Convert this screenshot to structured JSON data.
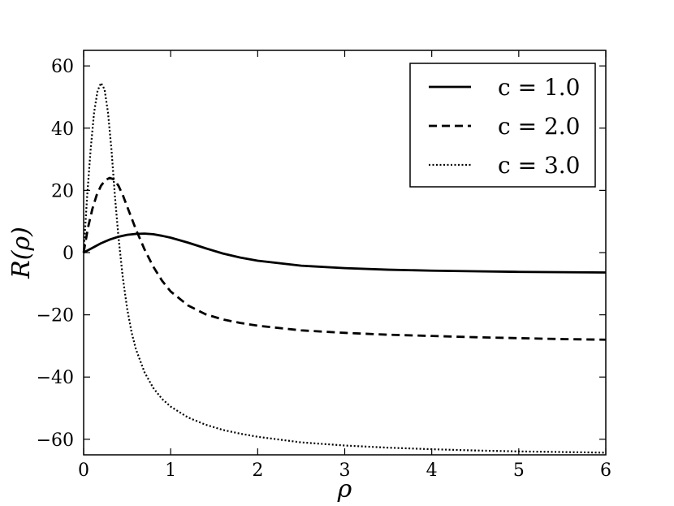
{
  "chart_data": {
    "type": "line",
    "title": "",
    "xlabel": "ρ",
    "ylabel": "R(ρ)",
    "xlim": [
      0,
      6
    ],
    "ylim": [
      -65,
      65
    ],
    "xticks": [
      0,
      1,
      2,
      3,
      4,
      5,
      6
    ],
    "xtick_labels": [
      "0",
      "1",
      "2",
      "3",
      "4",
      "5",
      "6"
    ],
    "yticks": [
      -60,
      -40,
      -20,
      0,
      20,
      40,
      60
    ],
    "ytick_labels": [
      "−60",
      "−40",
      "−20",
      "0",
      "20",
      "40",
      "60"
    ],
    "grid": false,
    "legend_position": "top-right",
    "series": [
      {
        "name": "c = 1.0",
        "style": "solid",
        "color": "#000000",
        "x": [
          0,
          0.1,
          0.2,
          0.3,
          0.4,
          0.5,
          0.6,
          0.7,
          0.8,
          0.9,
          1.0,
          1.2,
          1.4,
          1.6,
          1.8,
          2.0,
          2.5,
          3.0,
          3.5,
          4.0,
          4.5,
          5.0,
          5.5,
          6.0
        ],
        "y": [
          0,
          1.5,
          3,
          4.2,
          5.1,
          5.7,
          6,
          6.1,
          5.9,
          5.4,
          4.8,
          3.2,
          1.4,
          -0.3,
          -1.6,
          -2.6,
          -4.2,
          -5.0,
          -5.5,
          -5.8,
          -6.0,
          -6.2,
          -6.3,
          -6.4
        ]
      },
      {
        "name": "c = 2.0",
        "style": "dashed",
        "color": "#000000",
        "x": [
          0,
          0.05,
          0.1,
          0.15,
          0.2,
          0.25,
          0.3,
          0.35,
          0.4,
          0.45,
          0.5,
          0.6,
          0.7,
          0.8,
          0.9,
          1.0,
          1.2,
          1.4,
          1.6,
          1.8,
          2.0,
          2.5,
          3.0,
          3.5,
          4.0,
          4.5,
          5.0,
          5.5,
          6.0
        ],
        "y": [
          0,
          8,
          14,
          18.5,
          21.5,
          23.3,
          24,
          23.5,
          21.5,
          18.5,
          14.8,
          7.5,
          1,
          -4.5,
          -9,
          -12.5,
          -17,
          -19.8,
          -21.5,
          -22.6,
          -23.5,
          -25,
          -25.8,
          -26.4,
          -26.8,
          -27.2,
          -27.5,
          -27.8,
          -28
        ]
      },
      {
        "name": "c = 3.0",
        "style": "dotted",
        "color": "#000000",
        "x": [
          0,
          0.04,
          0.08,
          0.12,
          0.16,
          0.2,
          0.24,
          0.28,
          0.32,
          0.36,
          0.4,
          0.45,
          0.5,
          0.55,
          0.6,
          0.7,
          0.8,
          0.9,
          1.0,
          1.2,
          1.4,
          1.6,
          1.8,
          2.0,
          2.5,
          3.0,
          3.5,
          4.0,
          4.5,
          5.0,
          5.5,
          6.0
        ],
        "y": [
          0,
          18,
          33,
          45,
          52,
          54.5,
          52.5,
          45,
          33,
          18,
          5,
          -8,
          -18,
          -25.5,
          -31,
          -38.5,
          -43.5,
          -47,
          -49.5,
          -53,
          -55.3,
          -57,
          -58.2,
          -59.2,
          -61,
          -62,
          -62.7,
          -63.2,
          -63.6,
          -63.9,
          -64.1,
          -64.3
        ]
      }
    ]
  }
}
